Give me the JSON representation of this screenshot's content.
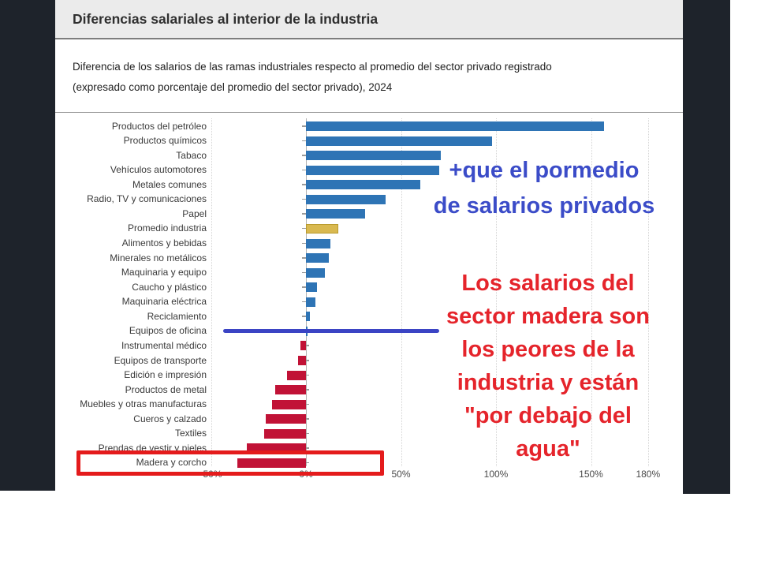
{
  "report": {
    "title": "Diferencias salariales al interior de la industria",
    "subtitle_line1": "Diferencia de los salarios de las ramas industriales respecto al promedio del sector privado registrado",
    "subtitle_line2": "(expresado como porcentaje del promedio del sector privado), 2024"
  },
  "chart_data": {
    "type": "bar",
    "orientation": "horizontal",
    "title": "Diferencias salariales al interior de la industria",
    "xlabel": "",
    "ylabel": "",
    "unit": "% del promedio del sector privado",
    "categories": [
      "Productos del petróleo",
      "Productos químicos",
      "Tabaco",
      "Vehículos automotores",
      "Metales comunes",
      "Radio, TV y comunicaciones",
      "Papel",
      "Promedio industria",
      "Alimentos y bebidas",
      "Minerales no metálicos",
      "Maquinaria y equipo",
      "Caucho y plástico",
      "Maquinaria eléctrica",
      "Reciclamiento",
      "Equipos de oficina",
      "Instrumental médico",
      "Equipos de transporte",
      "Edición e impresión",
      "Productos de metal",
      "Muebles y otras manufacturas",
      "Cueros y calzado",
      "Textiles",
      "Prendas de vestir y pieles",
      "Madera y corcho"
    ],
    "values": [
      157,
      98,
      71,
      70,
      60,
      42,
      31,
      17,
      13,
      12,
      10,
      6,
      5,
      2,
      1,
      -3,
      -4,
      -10,
      -16,
      -18,
      -21,
      -22,
      -31,
      -36
    ],
    "highlight_category": "Promedio industria",
    "x_ticks": [
      -50,
      0,
      50,
      100,
      150,
      180
    ],
    "x_tick_labels": [
      "-50%",
      "0%",
      "50%",
      "100%",
      "150%",
      "180%"
    ],
    "xlim": [
      -55,
      185
    ],
    "grid": "dotted-vertical",
    "legend": "none",
    "colors": {
      "positive": "#2e74b5",
      "average": "#d9b950",
      "average_border": "#b99b2e",
      "negative": "#c11236"
    }
  },
  "annotations": {
    "blue_note": {
      "lines": [
        "+que el pormedio",
        "de salarios privados"
      ],
      "color": "#3b4cc8"
    },
    "red_note": {
      "lines": [
        "Los salarios del",
        "sector madera son",
        "los peores de la",
        "industria y están",
        "\"por debajo del",
        "agua\""
      ],
      "color": "#e5242b"
    },
    "blue_underline": {
      "color": "#3b44c4",
      "points_to": "Equipos de oficina"
    },
    "red_highlight_box": {
      "color": "#e41b1c",
      "target": "Madera y corcho"
    }
  }
}
